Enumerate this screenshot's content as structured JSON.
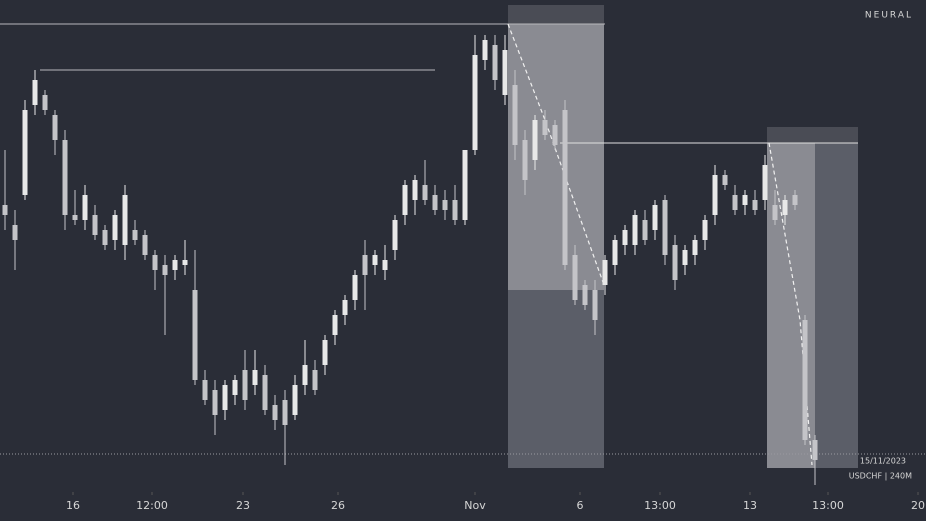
{
  "chart_data": {
    "type": "candlestick",
    "watermark": "NEURAL",
    "date_label": "15/11/2023",
    "symbol_label": "USDCHF | 240M",
    "up_color": "#e8e8e8",
    "down_color": "#c4c4c8",
    "xlim": [
      -0.5,
      92.1
    ],
    "ylim": [
      0,
      490
    ],
    "xticks": [
      {
        "value": 6.8,
        "label": "16"
      },
      {
        "value": 14.7,
        "label": "12:00"
      },
      {
        "value": 23.8,
        "label": "23"
      },
      {
        "value": 33.3,
        "label": "26"
      },
      {
        "value": 47,
        "label": "Nov"
      },
      {
        "value": 57.5,
        "label": "6"
      },
      {
        "value": 65.5,
        "label": "13:00"
      },
      {
        "value": 74.5,
        "label": "13"
      },
      {
        "value": 82.3,
        "label": "13:00"
      },
      {
        "value": 91.3,
        "label": "20"
      }
    ],
    "open": [
      285,
      265,
      295,
      385,
      395,
      375,
      350,
      275,
      270,
      275,
      260,
      250,
      245,
      260,
      255,
      235,
      225,
      220,
      225,
      200,
      110,
      100,
      80,
      95,
      120,
      105,
      115,
      85,
      90,
      75,
      105,
      120,
      125,
      155,
      175,
      190,
      235,
      225,
      220,
      240,
      275,
      290,
      305,
      295,
      290,
      290,
      270,
      340,
      430,
      445,
      395,
      405,
      350,
      330,
      370,
      365,
      380,
      235,
      205,
      200,
      205,
      225,
      245,
      245,
      270,
      260,
      290,
      245,
      225,
      235,
      250,
      275,
      315,
      295,
      285,
      290,
      290,
      285,
      275,
      295,
      170,
      50
    ],
    "high": [
      340,
      280,
      390,
      420,
      400,
      380,
      360,
      300,
      305,
      285,
      265,
      280,
      305,
      270,
      260,
      240,
      235,
      235,
      250,
      240,
      120,
      110,
      110,
      115,
      140,
      140,
      125,
      95,
      100,
      115,
      150,
      130,
      155,
      180,
      195,
      220,
      250,
      240,
      245,
      275,
      310,
      315,
      330,
      305,
      300,
      305,
      340,
      455,
      455,
      455,
      455,
      420,
      360,
      375,
      380,
      370,
      390,
      245,
      210,
      210,
      235,
      255,
      265,
      280,
      280,
      290,
      295,
      255,
      245,
      255,
      275,
      325,
      320,
      305,
      300,
      300,
      335,
      300,
      295,
      300,
      175,
      55
    ],
    "low": [
      260,
      220,
      290,
      375,
      375,
      335,
      260,
      265,
      260,
      250,
      240,
      240,
      230,
      245,
      230,
      200,
      155,
      210,
      215,
      105,
      85,
      55,
      70,
      85,
      80,
      95,
      75,
      60,
      25,
      70,
      95,
      95,
      115,
      145,
      165,
      180,
      180,
      215,
      210,
      230,
      265,
      275,
      285,
      275,
      270,
      265,
      265,
      335,
      420,
      400,
      385,
      330,
      295,
      320,
      350,
      340,
      220,
      185,
      180,
      155,
      195,
      215,
      235,
      235,
      245,
      250,
      225,
      200,
      215,
      225,
      240,
      265,
      300,
      275,
      275,
      275,
      280,
      265,
      265,
      280,
      45,
      5
    ],
    "close": [
      275,
      250,
      380,
      410,
      380,
      350,
      275,
      270,
      295,
      255,
      245,
      275,
      295,
      250,
      235,
      220,
      215,
      230,
      230,
      110,
      90,
      75,
      105,
      110,
      90,
      120,
      80,
      70,
      65,
      105,
      125,
      100,
      150,
      175,
      190,
      215,
      215,
      235,
      230,
      270,
      305,
      310,
      290,
      280,
      280,
      270,
      340,
      435,
      450,
      410,
      440,
      345,
      310,
      370,
      355,
      345,
      225,
      190,
      185,
      170,
      230,
      250,
      260,
      275,
      250,
      285,
      235,
      210,
      240,
      250,
      270,
      315,
      305,
      280,
      295,
      280,
      325,
      270,
      290,
      285,
      50,
      30
    ]
  }
}
